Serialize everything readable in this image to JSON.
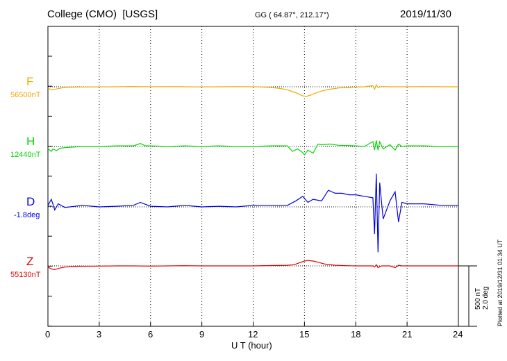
{
  "header": {
    "station": "College (CMO)  [USGS]",
    "coords": "GG ( 64.87°, 212.17°)",
    "date": "2019/11/30"
  },
  "chart_data": {
    "type": "line",
    "xlabel": "U T (hour)",
    "xlim": [
      0,
      24
    ],
    "xticks": [
      0,
      3,
      6,
      9,
      12,
      15,
      18,
      21,
      24
    ],
    "grid": "dotted vertical lines every 3 hours",
    "series": [
      {
        "name": "F",
        "baseline_label": "56500nT",
        "color": "#f0a800",
        "x": [
          0,
          0.2,
          0.4,
          0.6,
          0.8,
          1,
          1.5,
          2,
          3,
          4,
          5,
          6,
          7,
          8,
          9,
          10,
          11,
          12,
          12.5,
          13,
          13.5,
          14,
          14.3,
          14.6,
          14.9,
          15.1,
          15.3,
          15.6,
          16,
          16.5,
          17,
          18,
          18.5,
          19,
          19.1,
          19.2,
          19.3,
          19.5,
          20,
          21,
          22,
          23,
          24
        ],
        "y": [
          -12,
          -25,
          -22,
          -15,
          -10,
          -5,
          -3,
          -2,
          -1,
          0,
          2,
          0,
          1,
          0,
          -1,
          0,
          1,
          0,
          -2,
          -6,
          -12,
          -25,
          -40,
          -55,
          -75,
          -80,
          -72,
          -55,
          -35,
          -20,
          -10,
          -3,
          0,
          10,
          -20,
          15,
          -5,
          2,
          0,
          0,
          1,
          0,
          0
        ]
      },
      {
        "name": "H",
        "baseline_label": "12440nT",
        "color": "#00d800",
        "x": [
          0,
          0.2,
          0.3,
          0.5,
          0.7,
          1,
          2,
          3,
          4,
          5,
          5.4,
          5.7,
          6,
          7,
          8,
          9,
          10,
          11,
          12,
          13,
          14,
          14.3,
          14.6,
          14.9,
          15,
          15.2,
          15.5,
          15.8,
          16,
          16.5,
          17,
          18,
          18.5,
          19,
          19.1,
          19.2,
          19.3,
          19.4,
          19.6,
          20,
          20.3,
          20.5,
          20.7,
          21,
          22,
          23,
          24
        ],
        "y": [
          -20,
          -40,
          -20,
          -35,
          -15,
          -10,
          0,
          0,
          5,
          5,
          25,
          5,
          5,
          0,
          5,
          0,
          5,
          0,
          0,
          5,
          5,
          -40,
          -20,
          -50,
          -70,
          -30,
          -55,
          20,
          15,
          20,
          10,
          5,
          0,
          40,
          -30,
          50,
          -30,
          40,
          -20,
          15,
          -30,
          20,
          0,
          5,
          5,
          0,
          0
        ]
      },
      {
        "name": "D",
        "baseline_label": "-1.8deg",
        "color": "#0000e0",
        "x": [
          0,
          0.2,
          0.4,
          0.6,
          1,
          2,
          3,
          4,
          5,
          5.4,
          6,
          7,
          8,
          9,
          10,
          11,
          12,
          13,
          14,
          14.5,
          14.9,
          15.2,
          15.5,
          16,
          16.4,
          16.8,
          17.2,
          17.6,
          18,
          18.5,
          19,
          19.1,
          19.2,
          19.3,
          19.4,
          19.6,
          20,
          20.3,
          20.5,
          20.7,
          21,
          22,
          23,
          24
        ],
        "y": [
          0.05,
          0.25,
          -0.1,
          0.1,
          -0.02,
          0.05,
          0,
          0.02,
          0.05,
          0.15,
          0.02,
          0,
          0.05,
          0,
          0.02,
          0,
          0.05,
          0.05,
          0.05,
          0.2,
          0.35,
          0.15,
          0.25,
          0.2,
          0.55,
          0.45,
          0.45,
          0.4,
          0.4,
          0.35,
          0.3,
          -0.9,
          1.1,
          -1.5,
          0.8,
          -0.4,
          0.2,
          0.5,
          -0.5,
          0.15,
          0.1,
          0.1,
          0.05,
          0.05
        ]
      },
      {
        "name": "Z",
        "baseline_label": "55130nT",
        "color": "#e00000",
        "x": [
          0,
          0.2,
          0.4,
          0.6,
          0.8,
          1,
          1.5,
          2,
          3,
          4,
          5,
          6,
          7,
          8,
          9,
          10,
          11,
          12,
          13,
          14,
          14.4,
          14.7,
          15,
          15.2,
          15.5,
          15.8,
          16.2,
          16.8,
          17.5,
          18,
          19,
          19.1,
          19.2,
          19.3,
          19.5,
          20,
          20.3,
          20.5,
          20.7,
          21,
          22,
          23,
          24
        ],
        "y": [
          -10,
          -25,
          -30,
          -22,
          -15,
          -10,
          -5,
          -3,
          -2,
          0,
          0,
          -2,
          0,
          2,
          0,
          0,
          0,
          0,
          3,
          5,
          10,
          25,
          40,
          45,
          40,
          30,
          15,
          5,
          2,
          0,
          0,
          -10,
          10,
          -15,
          0,
          0,
          -15,
          5,
          0,
          0,
          0,
          0,
          0
        ]
      }
    ]
  },
  "scale_labels": {
    "nt": "500 nT",
    "deg": "2.0 deg"
  },
  "footer": {
    "plotted_at": "Plotted at 2019/12/31 01:34 UT"
  }
}
